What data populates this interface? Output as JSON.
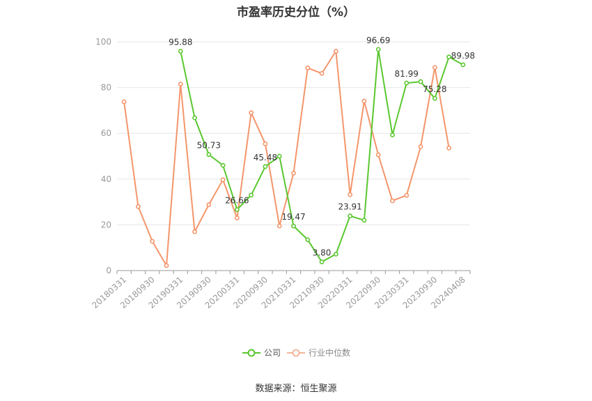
{
  "chart_data": {
    "type": "line",
    "title": "市盈率历史分位（%）",
    "x_tick_labels": [
      "20180331",
      "20180930",
      "20190331",
      "20190930",
      "20200331",
      "20200930",
      "20210331",
      "20210930",
      "20220331",
      "20220930",
      "20230331",
      "20230930",
      "20240408"
    ],
    "ylim": [
      0,
      100
    ],
    "y_ticks": [
      0,
      20,
      40,
      60,
      80,
      100
    ],
    "grid": true,
    "legend_position": "bottom",
    "series": [
      {
        "name": "公司",
        "color": "#5ac72f",
        "points": [
          {
            "i": 4,
            "y": 95.88,
            "label": "95.88"
          },
          {
            "i": 5,
            "y": 66.8
          },
          {
            "i": 6,
            "y": 50.73,
            "label": "50.73"
          },
          {
            "i": 7,
            "y": 46.0
          },
          {
            "i": 8,
            "y": 26.66,
            "label": "26.66"
          },
          {
            "i": 9,
            "y": 33.0
          },
          {
            "i": 10,
            "y": 45.48,
            "label": "45.48"
          },
          {
            "i": 11,
            "y": 50.0
          },
          {
            "i": 12,
            "y": 19.47,
            "label": "19.47"
          },
          {
            "i": 13,
            "y": 13.5
          },
          {
            "i": 14,
            "y": 3.8,
            "label": "3.80"
          },
          {
            "i": 15,
            "y": 7.2
          },
          {
            "i": 16,
            "y": 23.91,
            "label": "23.91"
          },
          {
            "i": 17,
            "y": 22.0
          },
          {
            "i": 18,
            "y": 96.69,
            "label": "96.69"
          },
          {
            "i": 19,
            "y": 59.3
          },
          {
            "i": 20,
            "y": 81.99,
            "label": "81.99"
          },
          {
            "i": 21,
            "y": 82.6
          },
          {
            "i": 22,
            "y": 75.28,
            "label": "75.28"
          },
          {
            "i": 23,
            "y": 93.4
          },
          {
            "i": 24,
            "y": 89.98,
            "label": "89.98"
          }
        ]
      },
      {
        "name": "行业中位数",
        "color": "#f4956b",
        "points": [
          {
            "i": 0,
            "y": 73.8
          },
          {
            "i": 1,
            "y": 28.0
          },
          {
            "i": 2,
            "y": 12.8
          },
          {
            "i": 3,
            "y": 2.2
          },
          {
            "i": 4,
            "y": 81.5
          },
          {
            "i": 5,
            "y": 17.0
          },
          {
            "i": 6,
            "y": 28.8
          },
          {
            "i": 7,
            "y": 39.7
          },
          {
            "i": 8,
            "y": 23.0
          },
          {
            "i": 9,
            "y": 69.0
          },
          {
            "i": 10,
            "y": 55.4
          },
          {
            "i": 11,
            "y": 19.5
          },
          {
            "i": 12,
            "y": 42.6
          },
          {
            "i": 13,
            "y": 88.6
          },
          {
            "i": 14,
            "y": 86.2
          },
          {
            "i": 15,
            "y": 95.9
          },
          {
            "i": 16,
            "y": 33.2
          },
          {
            "i": 17,
            "y": 74.1
          },
          {
            "i": 18,
            "y": 50.6
          },
          {
            "i": 19,
            "y": 30.5
          },
          {
            "i": 20,
            "y": 32.9
          },
          {
            "i": 21,
            "y": 54.2
          },
          {
            "i": 22,
            "y": 88.8
          },
          {
            "i": 23,
            "y": 53.6
          }
        ]
      }
    ]
  },
  "legend": {
    "company_label": "公司",
    "industry_label": "行业中位数"
  },
  "footer": {
    "source": "数据来源：恒生聚源"
  }
}
